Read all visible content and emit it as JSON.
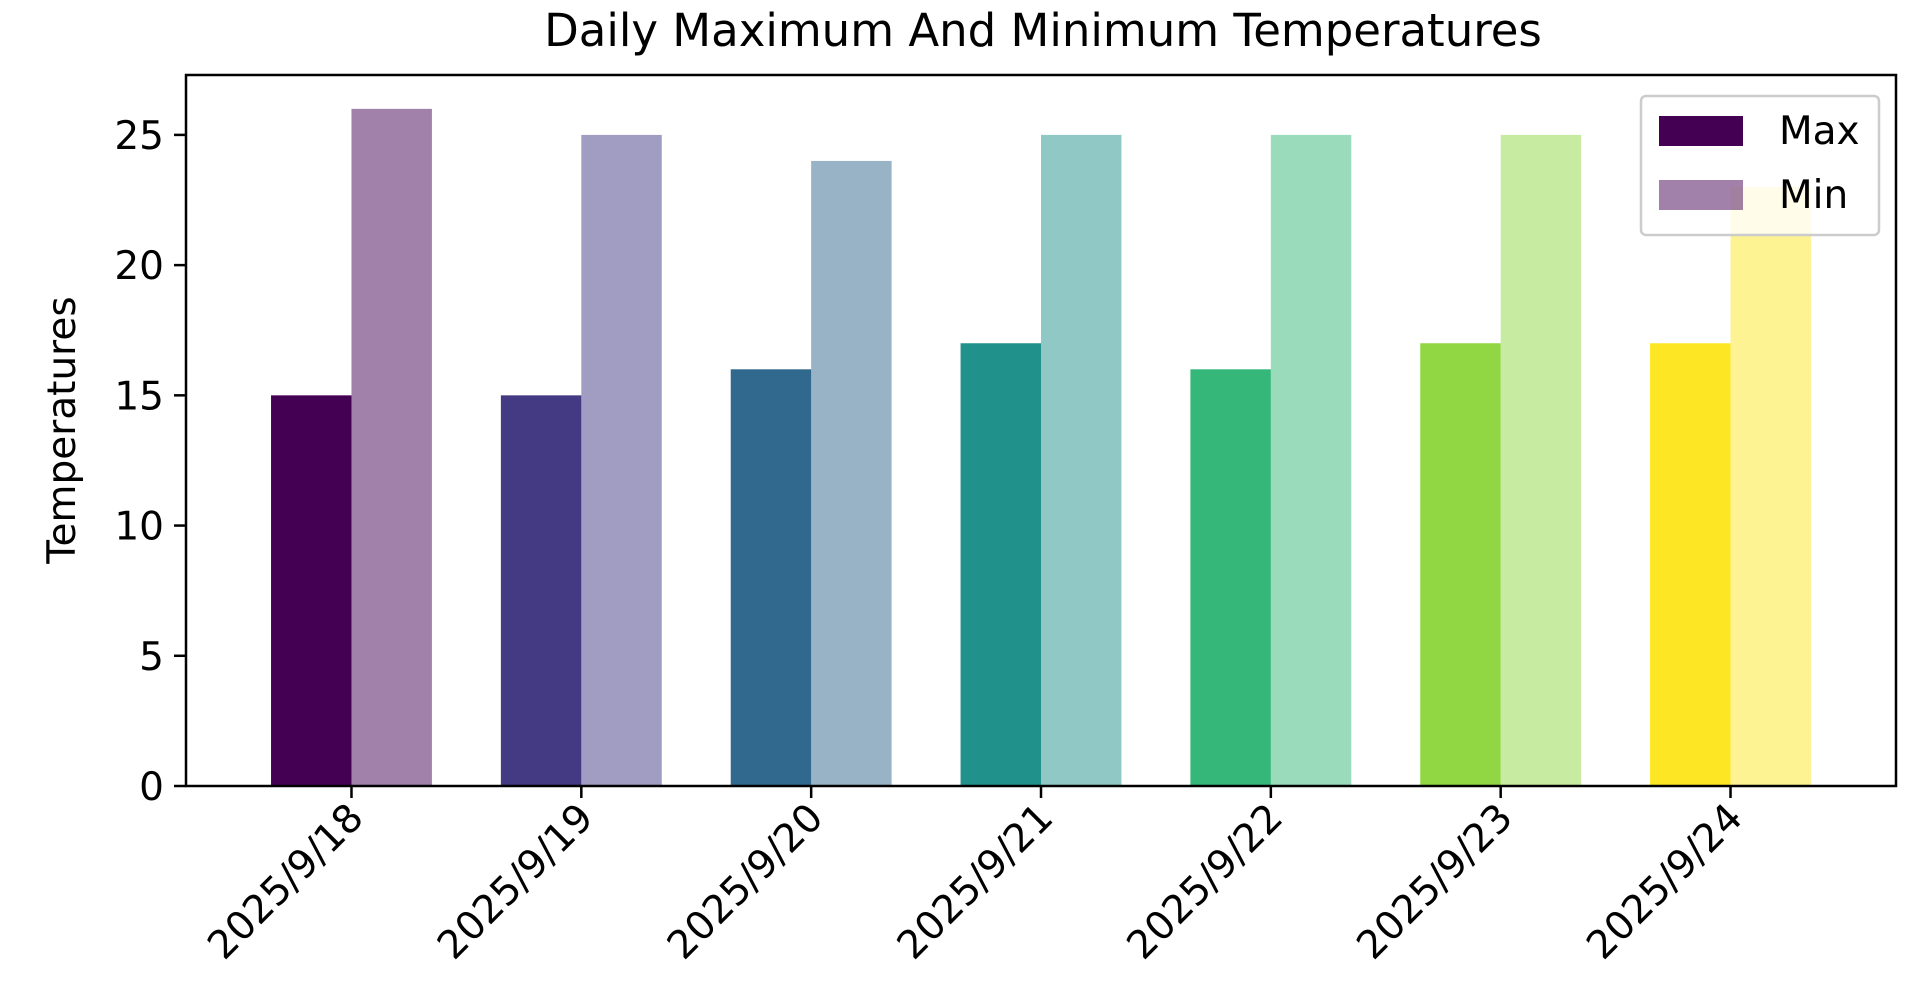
{
  "chart_data": {
    "type": "bar",
    "title": "Daily Maximum And Minimum Temperatures",
    "xlabel": "",
    "ylabel": "Temperatures",
    "categories": [
      "2025/9/18",
      "2025/9/19",
      "2025/9/20",
      "2025/9/21",
      "2025/9/22",
      "2025/9/23",
      "2025/9/24"
    ],
    "series": [
      {
        "name": "Max",
        "values": [
          15,
          15,
          16,
          17,
          16,
          17,
          17
        ],
        "colors": [
          "#440154",
          "#443983",
          "#31688e",
          "#21918c",
          "#35b779",
          "#90d743",
          "#fde725"
        ],
        "opacity": 1.0
      },
      {
        "name": "Min",
        "values": [
          26,
          25,
          24,
          25,
          25,
          25,
          23
        ],
        "colors": [
          "#440154",
          "#443983",
          "#31688e",
          "#21918c",
          "#35b779",
          "#90d743",
          "#fde725"
        ],
        "opacity": 0.5
      }
    ],
    "ylim": [
      0,
      27.3
    ],
    "yticks": [
      0,
      5,
      10,
      15,
      20,
      25
    ],
    "grid": false,
    "legend_position": "top-right"
  }
}
